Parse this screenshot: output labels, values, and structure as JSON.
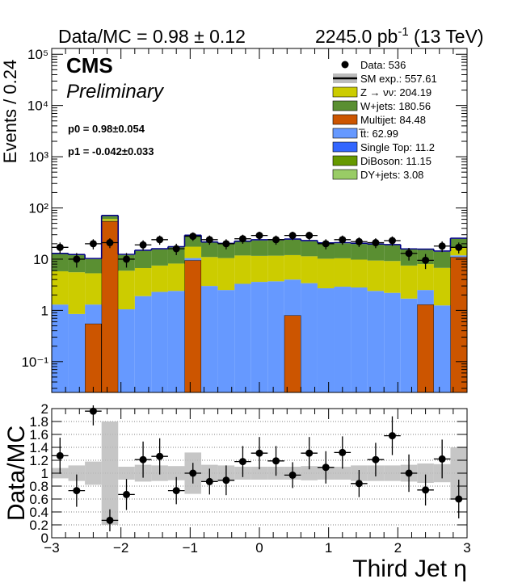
{
  "header": {
    "left": "Data/MC = 0.98 ± 0.12",
    "lumi": "2245.0 pb",
    "lumi_sup": "-1",
    "energy": " (13 TeV)"
  },
  "labels": {
    "cms": "CMS",
    "preliminary": "Preliminary",
    "p0": "p0 = 0.98±0.054",
    "p1": "p1 = -0.042±0.033"
  },
  "colors": {
    "znunu": "#cccc00",
    "wjets": "#5a8f32",
    "multijet": "#cc5500",
    "ttbar": "#6699ff",
    "singletop": "#3366ff",
    "diboson": "#669900",
    "dyjets": "#99cc66",
    "smline": "#000080",
    "band": "#bcbcbc"
  },
  "chart_data": [
    {
      "type": "area",
      "ylabel": "Events / 0.24",
      "yscale": "log",
      "ylim": [
        0.025,
        130000
      ],
      "xlim": [
        -3,
        3
      ],
      "yticks": [
        "10⁻¹",
        "1",
        "10",
        "10²",
        "10³",
        "10⁴",
        "10⁵"
      ],
      "legend_position": "top-right",
      "legend": [
        {
          "label": "Data: 536",
          "style": "marker"
        },
        {
          "label": "SM exp.: 557.61",
          "style": "line"
        },
        {
          "label": "Z → νν: 204.19",
          "style": "box",
          "color": "#cccc00"
        },
        {
          "label": "W+jets: 180.56",
          "style": "box",
          "color": "#5a8f32"
        },
        {
          "label": "Multijet: 84.48",
          "style": "box",
          "color": "#cc5500"
        },
        {
          "label": "t̅t: 62.99",
          "style": "box",
          "color": "#6699ff"
        },
        {
          "label": "Single Top: 11.2",
          "style": "box",
          "color": "#3366ff"
        },
        {
          "label": "DiBoson: 11.15",
          "style": "box",
          "color": "#669900"
        },
        {
          "label": "DY+jets: 3.08",
          "style": "box",
          "color": "#99cc66"
        }
      ],
      "bin_edges": [
        -3.0,
        -2.76,
        -2.52,
        -2.28,
        -2.04,
        -1.8,
        -1.56,
        -1.32,
        -1.08,
        -0.84,
        -0.6,
        -0.36,
        -0.12,
        0.12,
        0.36,
        0.6,
        0.84,
        1.08,
        1.32,
        1.56,
        1.8,
        2.04,
        2.28,
        2.52,
        2.76,
        3.0
      ],
      "stack_order": [
        "multijet",
        "ttbar",
        "znunu",
        "wjets"
      ],
      "series": [
        {
          "name": "Multijet",
          "key": "multijet",
          "values": [
            0,
            0,
            0.55,
            55,
            0,
            0,
            0,
            0,
            9.5,
            0,
            0,
            0,
            0,
            0,
            0.8,
            0,
            0,
            0,
            0,
            0,
            0,
            0,
            1.3,
            0,
            11
          ]
        },
        {
          "name": "t̅t",
          "key": "ttbar",
          "values": [
            1.3,
            0.85,
            0.75,
            0.7,
            1.05,
            1.9,
            2.3,
            2.4,
            1.0,
            3.0,
            2.5,
            3.3,
            3.6,
            3.7,
            3.2,
            3.4,
            2.7,
            2.9,
            2.8,
            2.4,
            2.2,
            1.7,
            1.2,
            1.25,
            0.85
          ]
        },
        {
          "name": "Z → νν",
          "key": "znunu",
          "values": [
            4.5,
            4.7,
            4.0,
            5.0,
            4.9,
            4.8,
            5.2,
            5.8,
            7.0,
            8.0,
            8.0,
            8.5,
            8.0,
            8.0,
            8.0,
            8.0,
            7.5,
            7.5,
            7.0,
            7.0,
            7.0,
            5.8,
            5.5,
            5.5,
            5.0
          ]
        },
        {
          "name": "W+jets",
          "key": "wjets",
          "values": [
            6.8,
            6.4,
            4.7,
            8.5,
            6.1,
            7.8,
            8.0,
            8.8,
            11.0,
            10.0,
            9.2,
            10.0,
            11.6,
            11.6,
            12.0,
            11.0,
            10.0,
            10.0,
            10.0,
            9.8,
            9.5,
            7.9,
            7.2,
            7.2,
            8.0
          ]
        }
      ],
      "data": {
        "x": [
          -2.88,
          -2.64,
          -2.4,
          -2.16,
          -1.92,
          -1.68,
          -1.44,
          -1.2,
          -0.96,
          -0.72,
          -0.48,
          -0.24,
          0.0,
          0.24,
          0.48,
          0.72,
          0.96,
          1.2,
          1.44,
          1.68,
          1.92,
          2.16,
          2.4,
          2.64,
          2.88
        ],
        "y": [
          17,
          10,
          20,
          21,
          10,
          19,
          24,
          16,
          28,
          24,
          20,
          25,
          29,
          24,
          29,
          29,
          20,
          24,
          22,
          21,
          23,
          13,
          9.5,
          18,
          17
        ]
      }
    },
    {
      "type": "scatter",
      "ylabel": "Data/MC",
      "xlabel": "Third Jet η",
      "ylim": [
        0,
        2
      ],
      "xlim": [
        -3,
        3
      ],
      "yticks": [
        "0",
        "0.2",
        "0.4",
        "0.6",
        "0.8",
        "1",
        "1.2",
        "1.4",
        "1.6",
        "1.8",
        "2"
      ],
      "xticks": [
        "−3",
        "−2",
        "−1",
        "0",
        "1",
        "2",
        "3"
      ],
      "grid": true,
      "ratio_x": [
        -2.88,
        -2.64,
        -2.4,
        -2.16,
        -1.92,
        -1.68,
        -1.44,
        -1.2,
        -0.96,
        -0.72,
        -0.48,
        -0.24,
        0.0,
        0.24,
        0.48,
        0.72,
        0.96,
        1.2,
        1.44,
        1.68,
        1.92,
        2.16,
        2.4,
        2.64,
        2.88
      ],
      "ratio_y": [
        1.27,
        0.73,
        1.96,
        0.27,
        0.67,
        1.21,
        1.26,
        0.73,
        1.0,
        0.87,
        0.89,
        1.18,
        1.31,
        1.19,
        0.97,
        1.31,
        1.09,
        1.32,
        0.84,
        1.21,
        1.58,
        1.0,
        0.74,
        1.22,
        0.6
      ],
      "ratio_err": [
        0.28,
        0.25,
        0.22,
        0.17,
        0.24,
        0.28,
        0.28,
        0.21,
        0.16,
        0.2,
        0.23,
        0.24,
        0.25,
        0.23,
        0.2,
        0.25,
        0.25,
        0.25,
        0.21,
        0.26,
        0.3,
        0.29,
        0.24,
        0.3,
        0.3
      ],
      "band_err": [
        0.08,
        0.12,
        0.18,
        0.8,
        0.1,
        0.13,
        0.12,
        0.11,
        0.32,
        0.13,
        0.12,
        0.1,
        0.1,
        0.1,
        0.1,
        0.11,
        0.1,
        0.1,
        0.12,
        0.12,
        0.12,
        0.13,
        0.15,
        0.14,
        0.4
      ]
    }
  ]
}
